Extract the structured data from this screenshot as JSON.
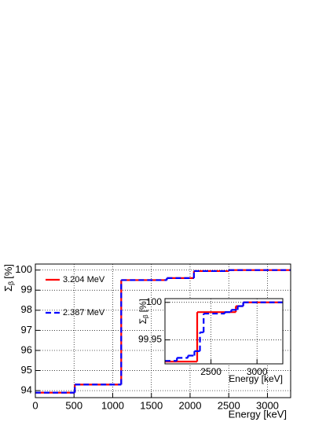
{
  "chart_data": [
    {
      "type": "step",
      "xlabel": "Energy [keV]",
      "ylabel_symbol": "Σ",
      "ylabel_subscript": "β",
      "ylabel_unit": "[%]",
      "xlim": [
        0,
        3300
      ],
      "ylim": [
        93.65,
        100.3
      ],
      "xticks": [
        0,
        500,
        1000,
        1500,
        2000,
        2500,
        3000
      ],
      "yticks": [
        94,
        95,
        96,
        97,
        98,
        99,
        100
      ],
      "grid": true,
      "series": [
        {
          "name": "3.204 MeV",
          "color": "#ff0000",
          "linestyle": "solid",
          "x": [
            0,
            510,
            1110,
            1700,
            2050,
            2500
          ],
          "values": [
            93.9,
            94.3,
            99.5,
            99.6,
            99.95,
            100
          ]
        },
        {
          "name": "2.387 MeV",
          "color": "#0000ff",
          "linestyle": "dashed",
          "x": [
            0,
            510,
            1110,
            1700,
            2050,
            2500
          ],
          "values": [
            93.9,
            94.3,
            99.5,
            99.6,
            99.95,
            100
          ]
        }
      ]
    },
    {
      "type": "step",
      "xlabel": "Energy [keV]",
      "ylabel_symbol": "Σ",
      "ylabel_subscript": "β",
      "ylabel_unit": "[%]",
      "xlim": [
        2000,
        3280
      ],
      "ylim": [
        99.918,
        100.005
      ],
      "xticks": [
        2500,
        3000
      ],
      "yticks": [
        99.95,
        100
      ],
      "grid": true,
      "series": [
        {
          "name": "3.204 MeV",
          "color": "#ff0000",
          "linestyle": "solid",
          "x": [
            2000,
            2350,
            2770,
            2850
          ],
          "values": [
            99.921,
            99.987,
            99.995,
            100
          ]
        },
        {
          "name": "2.387 MeV",
          "color": "#0000ff",
          "linestyle": "dashed",
          "x": [
            2000,
            2130,
            2250,
            2320,
            2380,
            2420,
            2650,
            2720,
            2790,
            2850
          ],
          "values": [
            99.922,
            99.926,
            99.929,
            99.935,
            99.96,
            99.985,
            99.987,
            99.99,
            99.995,
            100
          ]
        }
      ]
    }
  ]
}
